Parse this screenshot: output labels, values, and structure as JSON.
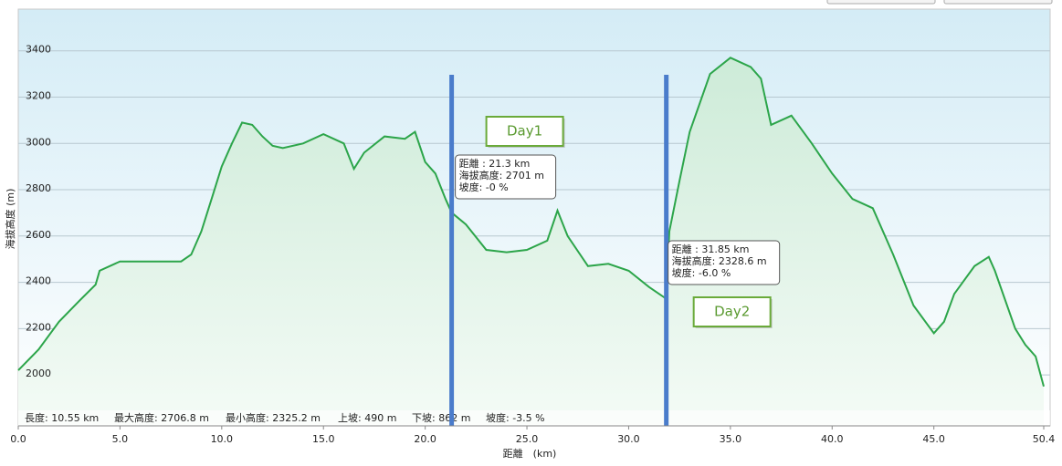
{
  "chart_data": {
    "type": "line",
    "area": true,
    "xlabel": "距離　(km)",
    "ylabel": "海拔高度 (m)",
    "x": [
      0,
      1,
      2,
      3,
      3.8,
      4,
      5,
      7,
      8,
      8.5,
      9,
      9.5,
      10,
      10.5,
      11,
      11.5,
      12,
      12.5,
      13,
      14,
      15,
      16,
      16.5,
      17,
      18,
      19,
      19.5,
      20,
      20.5,
      21,
      21.3,
      22,
      23,
      24,
      25,
      26,
      26.5,
      27,
      28,
      29,
      30,
      31,
      31.85,
      32,
      32.5,
      33,
      34,
      35,
      36,
      36.5,
      37,
      38,
      39,
      40,
      41,
      42,
      43,
      44,
      45,
      45.5,
      46,
      47,
      47.7,
      48,
      49,
      49.5,
      50,
      50.4
    ],
    "values": [
      2020,
      2110,
      2230,
      2320,
      2390,
      2450,
      2490,
      2490,
      2490,
      2520,
      2620,
      2760,
      2900,
      3000,
      3090,
      3080,
      3030,
      2990,
      2980,
      3000,
      3040,
      3000,
      2890,
      2960,
      3030,
      3020,
      3050,
      2920,
      2870,
      2760,
      2701,
      2650,
      2540,
      2530,
      2540,
      2580,
      2710,
      2600,
      2470,
      2480,
      2450,
      2380,
      2328.6,
      2620,
      2840,
      3050,
      3300,
      3370,
      3330,
      3280,
      3080,
      3120,
      3000,
      2870,
      2760,
      2720,
      2520,
      2300,
      2180,
      2230,
      2350,
      2470,
      2510,
      2450,
      2200,
      2130,
      2080,
      1950
    ],
    "color": "#2ca54a",
    "xlim": [
      0,
      50.4
    ],
    "ylim": [
      1780,
      3580
    ],
    "xticks": [
      {
        "value": 0,
        "label": "0.0"
      },
      {
        "value": 5,
        "label": "5.0"
      },
      {
        "value": 10,
        "label": "10.0"
      },
      {
        "value": 15,
        "label": "15.0"
      },
      {
        "value": 20,
        "label": "20.0"
      },
      {
        "value": 25,
        "label": "25.0"
      },
      {
        "value": 30,
        "label": "30.0"
      },
      {
        "value": 35,
        "label": "35.0"
      },
      {
        "value": 40,
        "label": "40.0"
      },
      {
        "value": 45,
        "label": "45.0"
      },
      {
        "value": 50.4,
        "label": "50.4"
      }
    ],
    "yticks": [
      2000,
      2200,
      2400,
      2600,
      2800,
      3000,
      3200,
      3400
    ],
    "grid": true,
    "markers": [
      {
        "x": 21.3,
        "label": "Day1",
        "tooltip": [
          "距離 : 21.3 km",
          "海拔高度: 2701 m",
          "坡度: -0 %"
        ]
      },
      {
        "x": 31.85,
        "label": "Day2",
        "tooltip": [
          "距離 : 31.85 km",
          "海拔高度: 2328.6 m",
          "坡度: -6.0 %"
        ]
      }
    ],
    "stats": [
      "長度: 10.55 km",
      "最大高度: 2706.8 m",
      "最小高度: 2325.2 m",
      "上坡: 490 m",
      "下坡: 862 m",
      "坡度: -3.5 %"
    ]
  }
}
